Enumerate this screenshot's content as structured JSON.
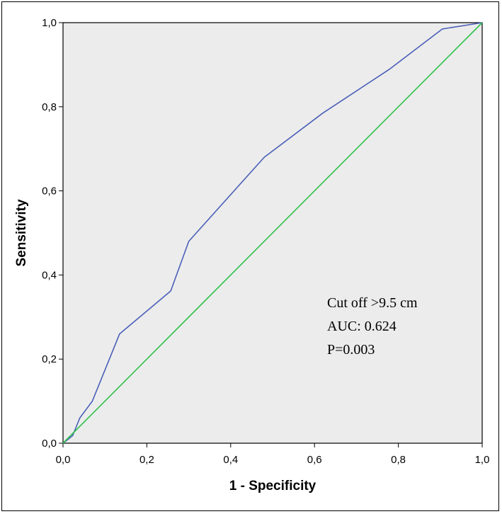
{
  "chart_data": {
    "type": "line",
    "title": "",
    "xlabel": "1 - Specificity",
    "ylabel": "Sensitivity",
    "xlim": [
      0,
      1
    ],
    "ylim": [
      0,
      1
    ],
    "x_ticks": [
      "0,0",
      "0,2",
      "0,4",
      "0,6",
      "0,8",
      "1,0"
    ],
    "y_ticks": [
      "0,0",
      "0,2",
      "0,4",
      "0,6",
      "0,8",
      "1,0"
    ],
    "grid": false,
    "plot_background": "#ececec",
    "series": [
      {
        "color": "#4a5fb8",
        "x": [
          0.0,
          0.013,
          0.023,
          0.04,
          0.07,
          0.135,
          0.257,
          0.3,
          0.48,
          0.62,
          0.78,
          0.905,
          1.0
        ],
        "y": [
          0.0,
          0.01,
          0.018,
          0.06,
          0.1,
          0.26,
          0.362,
          0.48,
          0.68,
          0.785,
          0.89,
          0.985,
          1.0
        ]
      },
      {
        "color": "#2ec24a",
        "x": [
          0.0,
          1.0
        ],
        "y": [
          0.0,
          1.0
        ]
      }
    ],
    "annotations": [
      "Cut off  >9.5 cm",
      "AUC: 0.624",
      "P=0.003"
    ]
  }
}
